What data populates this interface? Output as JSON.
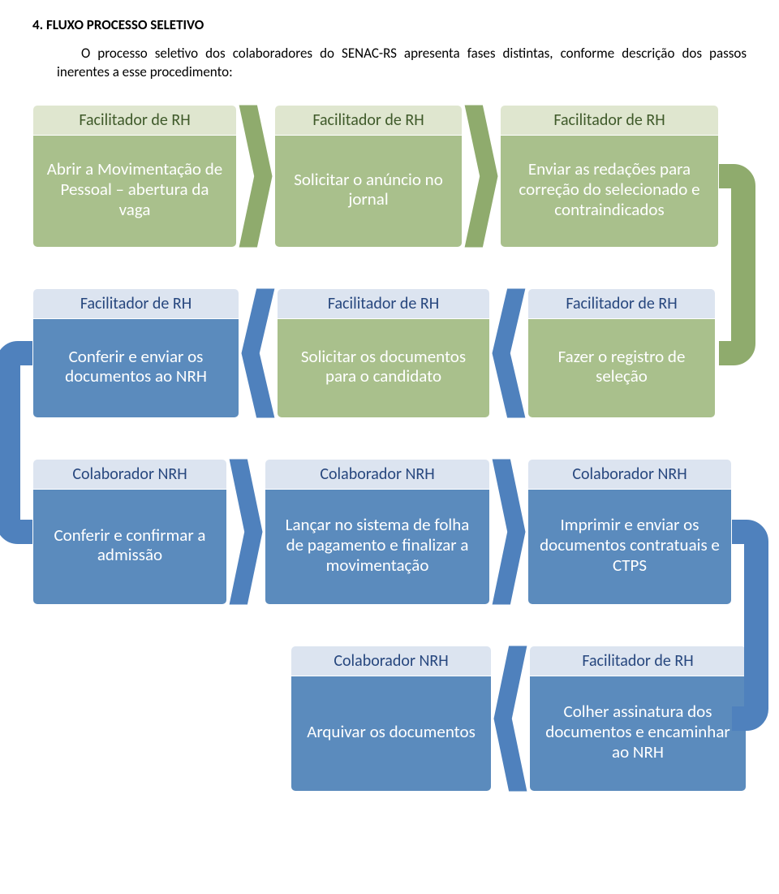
{
  "heading": "4. FLUXO PROCESSO SELETIVO",
  "intro": "O processo seletivo dos colaboradores do SENAC-RS apresenta fases distintas, conforme descrição dos passos inerentes a esse procedimento:",
  "colors": {
    "green_header_bg": "#dfe6cf",
    "green_header_text": "#3f5a2a",
    "green_body_bg": "#a9c08c",
    "green_body_text": "#ffffff",
    "blue_header_bg": "#dce4f0",
    "blue_header_text": "#27477e",
    "blue_body_bg": "#5b8bbd",
    "blue_body_text": "#ffffff",
    "arrow_green": "#8fab6d",
    "arrow_blue": "#4f81bd",
    "page_bg": "#ffffff",
    "text_black": "#000000"
  },
  "layout": {
    "card_w_row1": [
      252,
      232,
      270
    ],
    "card_h_row1": 176,
    "card_w_row2": [
      255,
      263,
      232
    ],
    "card_h_row2": 160,
    "card_w_row3": [
      240,
      278,
      252
    ],
    "card_h_row3": 180,
    "card_w_row4": [
      248,
      268
    ],
    "card_h_row4": 180,
    "arrow_w": 46,
    "header_fontsize": 20,
    "body_fontsize": 21
  },
  "rows": [
    {
      "dir": "right",
      "theme_body": "green",
      "arrow_color": "#8fab6d",
      "cards": [
        {
          "header": "Facilitador de RH",
          "body": "Abrir a Movimentação de Pessoal – abertura da vaga",
          "header_theme": "green"
        },
        {
          "header": "Facilitador de RH",
          "body": "Solicitar o anúncio no jornal",
          "header_theme": "green"
        },
        {
          "header": "Facilitador de RH",
          "body": "Enviar as redações para correção do selecionado e contraindicados",
          "header_theme": "green"
        }
      ]
    },
    {
      "dir": "left",
      "theme_body": "mix",
      "arrow_color": "#4f81bd",
      "cards": [
        {
          "header": "Facilitador de RH",
          "body": "Conferir e enviar os documentos ao NRH",
          "header_theme": "blue",
          "body_theme": "blue"
        },
        {
          "header": "Facilitador de RH",
          "body": "Solicitar os documentos para o candidato",
          "header_theme": "blue",
          "body_theme": "green"
        },
        {
          "header": "Facilitador de RH",
          "body": "Fazer o registro de seleção",
          "header_theme": "blue",
          "body_theme": "green"
        }
      ]
    },
    {
      "dir": "right",
      "theme_body": "blue",
      "arrow_color": "#4f81bd",
      "cards": [
        {
          "header": "Colaborador NRH",
          "body": "Conferir  e confirmar a admissão",
          "header_theme": "blue"
        },
        {
          "header": "Colaborador NRH",
          "body": "Lançar no sistema  de folha de pagamento e finalizar a movimentação",
          "header_theme": "blue"
        },
        {
          "header": "Colaborador NRH",
          "body": "Imprimir e enviar os documentos contratuais e CTPS",
          "header_theme": "blue"
        }
      ]
    },
    {
      "dir": "left",
      "theme_body": "blue",
      "arrow_color": "#4f81bd",
      "cards": [
        {
          "header": "Colaborador NRH",
          "body": "Arquivar os documentos",
          "header_theme": "blue"
        },
        {
          "header": "Facilitador de RH",
          "body": "Colher assinatura dos documentos e encaminhar ao NRH",
          "header_theme": "blue"
        }
      ]
    }
  ]
}
